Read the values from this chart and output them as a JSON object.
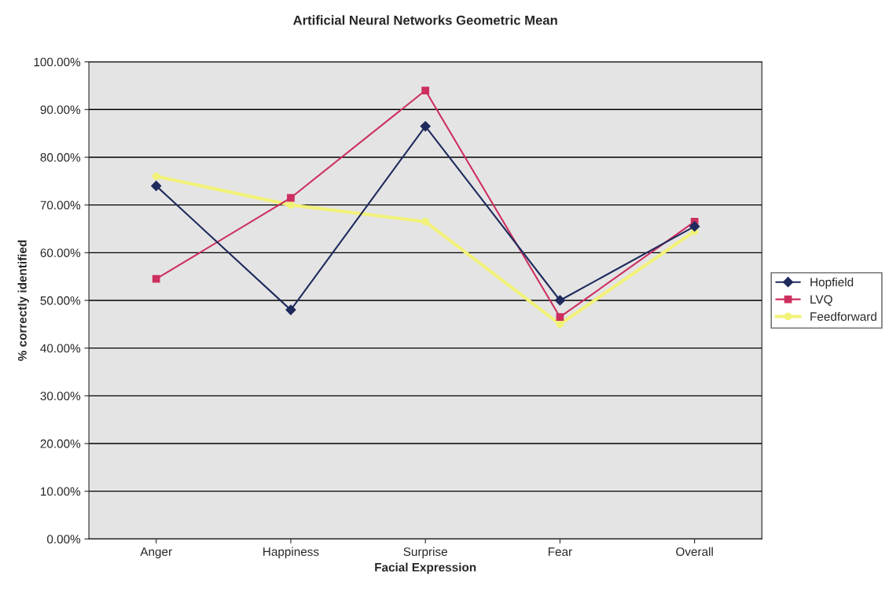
{
  "chart_data": {
    "type": "line",
    "title": "Artificial Neural Networks Geometric Mean",
    "xlabel": "Facial Expression",
    "ylabel": "% correctly identified",
    "categories": [
      "Anger",
      "Happiness",
      "Surprise",
      "Fear",
      "Overall"
    ],
    "series": [
      {
        "name": "Hopfield",
        "color": "#1f2a5c",
        "marker": "diamond",
        "values": [
          74.0,
          48.0,
          86.5,
          50.0,
          65.5
        ]
      },
      {
        "name": "LVQ",
        "color": "#cc2f5e",
        "marker": "square",
        "values": [
          54.5,
          71.5,
          94.0,
          46.5,
          66.5
        ]
      },
      {
        "name": "Feedforward",
        "color": "#f2f27a",
        "marker": "circle",
        "values": [
          76.0,
          70.0,
          66.5,
          45.0,
          64.5
        ]
      }
    ],
    "ylim": [
      0,
      100
    ],
    "yticks": [
      {
        "value": 0,
        "label": "0.00%"
      },
      {
        "value": 10,
        "label": "10.00%"
      },
      {
        "value": 20,
        "label": "20.00%"
      },
      {
        "value": 30,
        "label": "30.00%"
      },
      {
        "value": 40,
        "label": "40.00%"
      },
      {
        "value": 50,
        "label": "50.00%"
      },
      {
        "value": 60,
        "label": "60.00%"
      },
      {
        "value": 70,
        "label": "70.00%"
      },
      {
        "value": 80,
        "label": "80.00%"
      },
      {
        "value": 90,
        "label": "90.00%"
      },
      {
        "value": 100,
        "label": "100.00%"
      }
    ],
    "grid": "y",
    "legend": "right"
  }
}
